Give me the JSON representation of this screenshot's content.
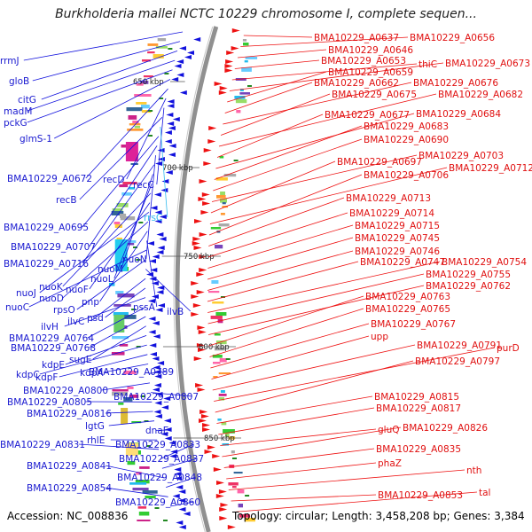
{
  "title": "Burkholderia mallei NCTC 10229 chromosome I, complete sequen...",
  "footer": {
    "accession": "Accession: NC_008836",
    "summary": "Topology: circular; Length: 3,458,208 bp; Genes: 3,384"
  },
  "kbp_ticks": [
    "650 kbp",
    "700 kbp",
    "750 kbp",
    "800 kbp",
    "850 kbp"
  ],
  "left_labels": [
    {
      "text": "rrmJ",
      "color": "blue"
    },
    {
      "text": "gloB",
      "color": "blue"
    },
    {
      "text": "citG",
      "color": "blue"
    },
    {
      "text": "madM",
      "color": "blue"
    },
    {
      "text": "pckG",
      "color": "blue"
    },
    {
      "text": "glmS-1",
      "color": "blue"
    },
    {
      "text": "BMA10229_A0672",
      "color": "blue"
    },
    {
      "text": "recD",
      "color": "blue"
    },
    {
      "text": "recC",
      "color": "blue"
    },
    {
      "text": "recB",
      "color": "blue"
    },
    {
      "text": "rrsC",
      "color": "cyan"
    },
    {
      "text": "BMA10229_A0695",
      "color": "blue"
    },
    {
      "text": "BMA10229_A0707",
      "color": "blue"
    },
    {
      "text": "nuoN",
      "color": "blue"
    },
    {
      "text": "BMA10229_A0716",
      "color": "blue"
    },
    {
      "text": "nuoM",
      "color": "blue"
    },
    {
      "text": "nuoL",
      "color": "blue"
    },
    {
      "text": "nuoK",
      "color": "blue"
    },
    {
      "text": "nuoF",
      "color": "blue"
    },
    {
      "text": "nuoJ",
      "color": "blue"
    },
    {
      "text": "nuoD",
      "color": "blue"
    },
    {
      "text": "pnp",
      "color": "blue"
    },
    {
      "text": "pssA",
      "color": "blue"
    },
    {
      "text": "nuoC",
      "color": "blue"
    },
    {
      "text": "rpsO",
      "color": "blue"
    },
    {
      "text": "ilvB",
      "color": "blue"
    },
    {
      "text": "ilvC",
      "color": "blue"
    },
    {
      "text": "psd",
      "color": "blue"
    },
    {
      "text": "ilvH",
      "color": "blue"
    },
    {
      "text": "BMA10229_A0764",
      "color": "blue"
    },
    {
      "text": "BMA10229_A0768",
      "color": "blue"
    },
    {
      "text": "sugE",
      "color": "blue"
    },
    {
      "text": "kdpE",
      "color": "blue"
    },
    {
      "text": "kdpC",
      "color": "blue"
    },
    {
      "text": "kdpF",
      "color": "blue"
    },
    {
      "text": "kdpA",
      "color": "blue"
    },
    {
      "text": "BMA10229_A0789",
      "color": "blue"
    },
    {
      "text": "BMA10229_A0800",
      "color": "blue"
    },
    {
      "text": "BMA10229_A0807",
      "color": "blue"
    },
    {
      "text": "BMA10229_A0805",
      "color": "blue"
    },
    {
      "text": "BMA10229_A0816",
      "color": "blue"
    },
    {
      "text": "lgtG",
      "color": "blue"
    },
    {
      "text": "dnaE",
      "color": "blue"
    },
    {
      "text": "rhlE",
      "color": "blue"
    },
    {
      "text": "BMA10229_A0831",
      "color": "blue"
    },
    {
      "text": "BMA10229_A0833",
      "color": "blue"
    },
    {
      "text": "BMA10229_A0837",
      "color": "blue"
    },
    {
      "text": "BMA10229_A0841",
      "color": "blue"
    },
    {
      "text": "BMA10229_A0848",
      "color": "blue"
    },
    {
      "text": "BMA10229_A0854",
      "color": "blue"
    },
    {
      "text": "BMA10229_A0860",
      "color": "blue"
    }
  ],
  "right_labels": [
    {
      "text": "BMA10229_A0637"
    },
    {
      "text": "BMA10229_A0656"
    },
    {
      "text": "BMA10229_A0646"
    },
    {
      "text": "BMA10229_A0653"
    },
    {
      "text": "thiC"
    },
    {
      "text": "BMA10229_A0673"
    },
    {
      "text": "BMA10229_A0659"
    },
    {
      "text": "BMA10229_A0662"
    },
    {
      "text": "BMA10229_A0676"
    },
    {
      "text": "BMA10229_A0675"
    },
    {
      "text": "BMA10229_A0682"
    },
    {
      "text": "BMA10229_A0677"
    },
    {
      "text": "BMA10229_A0684"
    },
    {
      "text": "BMA10229_A0683"
    },
    {
      "text": "BMA10229_A0690"
    },
    {
      "text": "BMA10229_A0703"
    },
    {
      "text": "BMA10229_A0697"
    },
    {
      "text": "BMA10229_A0712"
    },
    {
      "text": "BMA10229_A0706"
    },
    {
      "text": "BMA10229_A0713"
    },
    {
      "text": "BMA10229_A0714"
    },
    {
      "text": "BMA10229_A0715"
    },
    {
      "text": "BMA10229_A0745"
    },
    {
      "text": "BMA10229_A0746"
    },
    {
      "text": "BMA10229_A0747"
    },
    {
      "text": "BMA10229_A0754"
    },
    {
      "text": "BMA10229_A0755"
    },
    {
      "text": "BMA10229_A0762"
    },
    {
      "text": "BMA10229_A0763"
    },
    {
      "text": "BMA10229_A0765"
    },
    {
      "text": "BMA10229_A0767"
    },
    {
      "text": "upp"
    },
    {
      "text": "BMA10229_A0791"
    },
    {
      "text": "purD"
    },
    {
      "text": "BMA10229_A0797"
    },
    {
      "text": "BMA10229_A0815"
    },
    {
      "text": "BMA10229_A0817"
    },
    {
      "text": "gluQ"
    },
    {
      "text": "BMA10229_A0826"
    },
    {
      "text": "BMA10229_A0835"
    },
    {
      "text": "phaZ"
    },
    {
      "text": "nth"
    },
    {
      "text": "BMA10229_A0853"
    },
    {
      "text": "tal"
    }
  ],
  "colors": {
    "forward_strand": "#ee1111",
    "reverse_strand": "#1111dd",
    "backbone": "#909090",
    "rna": "#33bbee",
    "tick": "#228822"
  }
}
